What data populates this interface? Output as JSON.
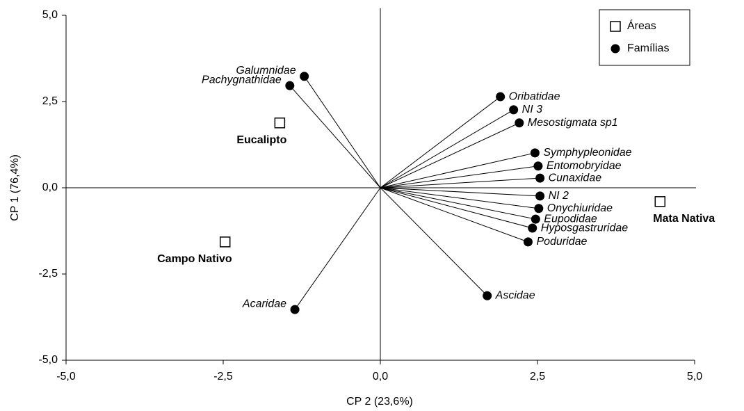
{
  "chart_data": {
    "type": "scatter",
    "xlabel": "CP 2 (23,6%)",
    "ylabel": "CP 1 (76,4%)",
    "xlim": [
      -5,
      5
    ],
    "ylim": [
      -5,
      5
    ],
    "xticks": [
      {
        "value": -5,
        "label": "-5,0"
      },
      {
        "value": -2.5,
        "label": "-2,5"
      },
      {
        "value": 0,
        "label": "0,0"
      },
      {
        "value": 2.5,
        "label": "2,5"
      },
      {
        "value": 5,
        "label": "5,0"
      }
    ],
    "yticks": [
      {
        "value": -5,
        "label": "-5,0"
      },
      {
        "value": -2.5,
        "label": "-2,5"
      },
      {
        "value": 0,
        "label": "0,0"
      },
      {
        "value": 2.5,
        "label": "2,5"
      },
      {
        "value": 5,
        "label": "5,0"
      }
    ],
    "legend": "top-right",
    "series": [
      {
        "name": "Áreas",
        "marker": "square",
        "color": "#ffffff",
        "labels": [
          "Eucalipto",
          "Campo Nativo",
          "Mata Nativa"
        ],
        "x": [
          -1.6,
          -2.47,
          4.45
        ],
        "y": [
          1.88,
          -1.57,
          -0.4
        ]
      },
      {
        "name": "Famílias",
        "marker": "circle",
        "color": "#000000",
        "vectors": true,
        "labels": [
          "Galumnidae",
          "Pachygnathidae",
          "Oribatidae",
          "NI 3",
          "Mesostigmata sp1",
          "Symphypleonidae",
          "Entomobryidae",
          "Cunaxidae",
          "NI 2",
          "Onychiuridae",
          "Eupodidae",
          "Hyposgastruridae",
          "Poduridae",
          "Ascidae",
          "Acaridae"
        ],
        "x": [
          -1.21,
          -1.44,
          1.91,
          2.12,
          2.21,
          2.46,
          2.51,
          2.54,
          2.54,
          2.52,
          2.47,
          2.42,
          2.35,
          1.7,
          -1.36
        ],
        "y": [
          3.23,
          2.96,
          2.64,
          2.26,
          1.88,
          1.01,
          0.63,
          0.28,
          -0.24,
          -0.6,
          -0.91,
          -1.17,
          -1.57,
          -3.13,
          -3.53
        ]
      }
    ]
  }
}
